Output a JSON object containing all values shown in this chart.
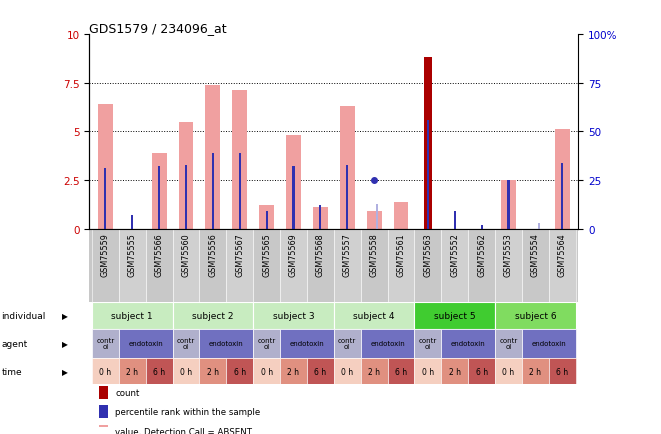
{
  "title": "GDS1579 / 234096_at",
  "samples": [
    "GSM75559",
    "GSM75555",
    "GSM75566",
    "GSM75560",
    "GSM75556",
    "GSM75567",
    "GSM75565",
    "GSM75569",
    "GSM75568",
    "GSM75557",
    "GSM75558",
    "GSM75561",
    "GSM75563",
    "GSM75552",
    "GSM75562",
    "GSM75553",
    "GSM75554",
    "GSM75564"
  ],
  "pink_bars": [
    6.4,
    0.0,
    3.9,
    5.5,
    7.4,
    7.1,
    1.2,
    4.8,
    1.1,
    6.3,
    0.9,
    1.4,
    0.0,
    0.0,
    0.0,
    2.5,
    0.0,
    5.1
  ],
  "red_bars": [
    0.0,
    0.0,
    0.0,
    0.0,
    0.0,
    0.0,
    0.0,
    0.0,
    0.0,
    0.0,
    0.0,
    0.0,
    8.8,
    0.0,
    0.0,
    0.0,
    0.0,
    0.0
  ],
  "blue_bars": [
    3.1,
    0.7,
    3.2,
    3.3,
    3.9,
    3.9,
    0.9,
    3.2,
    1.2,
    3.3,
    0.0,
    0.0,
    5.6,
    0.9,
    0.2,
    2.5,
    0.0,
    3.4
  ],
  "purple_bars": [
    0.0,
    0.0,
    0.0,
    0.0,
    0.0,
    0.0,
    0.0,
    0.0,
    0.0,
    0.0,
    1.3,
    0.0,
    0.0,
    0.0,
    0.0,
    0.0,
    0.3,
    0.0
  ],
  "blue_circle": [
    false,
    false,
    false,
    false,
    false,
    false,
    false,
    false,
    false,
    false,
    true,
    false,
    false,
    false,
    false,
    false,
    false,
    false
  ],
  "blue_circle_val": [
    0.0,
    0.0,
    0.0,
    0.0,
    0.0,
    0.0,
    0.0,
    0.0,
    0.0,
    0.0,
    2.5,
    0.0,
    0.0,
    0.0,
    0.0,
    0.0,
    0.0,
    0.0
  ],
  "subjects": [
    {
      "label": "subject 1",
      "start": 0,
      "end": 3,
      "color": "#c8ecc0"
    },
    {
      "label": "subject 2",
      "start": 3,
      "end": 6,
      "color": "#c8ecc0"
    },
    {
      "label": "subject 3",
      "start": 6,
      "end": 9,
      "color": "#c8ecc0"
    },
    {
      "label": "subject 4",
      "start": 9,
      "end": 12,
      "color": "#c8ecc0"
    },
    {
      "label": "subject 5",
      "start": 12,
      "end": 15,
      "color": "#40cc30"
    },
    {
      "label": "subject 6",
      "start": 15,
      "end": 18,
      "color": "#80dc60"
    }
  ],
  "agents": [
    {
      "label": "control",
      "start": 0,
      "end": 1
    },
    {
      "label": "endotoxin",
      "start": 1,
      "end": 3
    },
    {
      "label": "control",
      "start": 3,
      "end": 4
    },
    {
      "label": "endotoxin",
      "start": 4,
      "end": 6
    },
    {
      "label": "control",
      "start": 6,
      "end": 7
    },
    {
      "label": "endotoxin",
      "start": 7,
      "end": 9
    },
    {
      "label": "control",
      "start": 9,
      "end": 10
    },
    {
      "label": "endotoxin",
      "start": 10,
      "end": 12
    },
    {
      "label": "control",
      "start": 12,
      "end": 13
    },
    {
      "label": "endotoxin",
      "start": 13,
      "end": 15
    },
    {
      "label": "control",
      "start": 15,
      "end": 16
    },
    {
      "label": "endotoxin",
      "start": 16,
      "end": 18
    }
  ],
  "times": [
    "0 h",
    "2 h",
    "6 h",
    "0 h",
    "2 h",
    "6 h",
    "0 h",
    "2 h",
    "6 h",
    "0 h",
    "2 h",
    "6 h",
    "0 h",
    "2 h",
    "6 h",
    "0 h",
    "2 h",
    "6 h"
  ],
  "ylim": [
    0,
    10
  ],
  "yticks_left": [
    0,
    2.5,
    5,
    7.5,
    10
  ],
  "yticks_right": [
    0,
    25,
    50,
    75,
    100
  ],
  "pink_color": "#f0a0a0",
  "red_color": "#aa0000",
  "blue_color": "#3030b0",
  "purple_color": "#b0b0e0",
  "control_color": "#b0b0cc",
  "endotoxin_color": "#7070c0",
  "time_0h_color": "#f5cfc0",
  "time_2h_color": "#e09080",
  "time_6h_color": "#c05555",
  "label_bg_color": "#c8c8c8"
}
